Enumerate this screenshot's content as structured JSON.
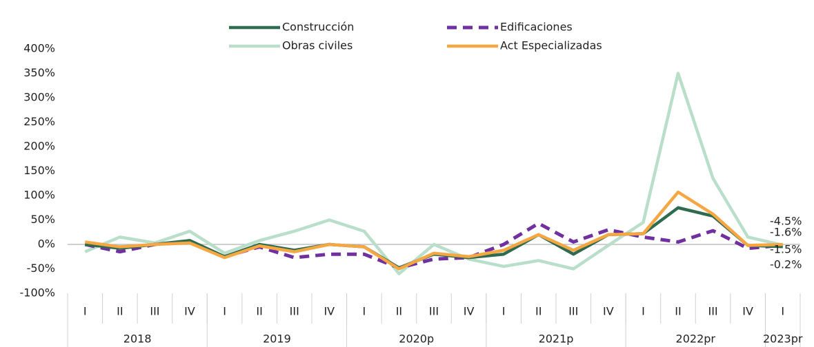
{
  "chart_data": {
    "type": "line",
    "categories": [
      "I",
      "II",
      "III",
      "IV",
      "I",
      "II",
      "III",
      "IV",
      "I",
      "II",
      "III",
      "IV",
      "I",
      "II",
      "III",
      "IV",
      "I",
      "II",
      "III",
      "IV",
      "I"
    ],
    "category_groups": [
      "2018",
      "2019",
      "2020p",
      "2021p",
      "2022pr",
      "2023pr"
    ],
    "ylim": [
      -100,
      400
    ],
    "yticks": [
      {
        "value": -100,
        "label": "-100%"
      },
      {
        "value": -50,
        "label": "-50%"
      },
      {
        "value": 0,
        "label": "0%"
      },
      {
        "value": 50,
        "label": "50%"
      },
      {
        "value": 100,
        "label": "100%"
      },
      {
        "value": 150,
        "label": "150%"
      },
      {
        "value": 200,
        "label": "200%"
      },
      {
        "value": 250,
        "label": "250%"
      },
      {
        "value": 300,
        "label": "300%"
      },
      {
        "value": 350,
        "label": "350%"
      },
      {
        "value": 400,
        "label": "400%"
      }
    ],
    "grid": false,
    "series": [
      {
        "name": "Construcción",
        "color": "#2e6b4f",
        "dashed": false,
        "values": [
          0,
          -8,
          0,
          8,
          -25,
          0,
          -12,
          0,
          -5,
          -48,
          -20,
          -27,
          -20,
          20,
          -20,
          20,
          22,
          75,
          58,
          -2,
          -4.5
        ],
        "value_labels": [
          null,
          null,
          null,
          null,
          null,
          null,
          null,
          null,
          null,
          null,
          null,
          null,
          null,
          null,
          null,
          null,
          null,
          null,
          null,
          null,
          "-4.5%"
        ]
      },
      {
        "name": "Edificaciones",
        "color": "#7030a0",
        "dashed": true,
        "values": [
          0,
          -15,
          0,
          5,
          -25,
          -5,
          -27,
          -20,
          -20,
          -48,
          -30,
          -27,
          0,
          43,
          5,
          30,
          15,
          5,
          28,
          -8,
          -1.6
        ],
        "value_labels": [
          null,
          null,
          null,
          null,
          null,
          null,
          null,
          null,
          null,
          null,
          null,
          null,
          null,
          null,
          null,
          null,
          null,
          null,
          null,
          null,
          "-1.6%"
        ]
      },
      {
        "name": "Obras civiles",
        "color": "#b9dfca",
        "dashed": false,
        "values": [
          -15,
          15,
          3,
          27,
          -18,
          8,
          27,
          50,
          27,
          -60,
          0,
          -30,
          -45,
          -33,
          -50,
          -2,
          45,
          350,
          135,
          15,
          -1.5
        ],
        "value_labels": [
          null,
          null,
          null,
          null,
          null,
          null,
          null,
          null,
          null,
          null,
          null,
          null,
          null,
          null,
          null,
          null,
          null,
          null,
          null,
          null,
          "-1.5%"
        ]
      },
      {
        "name": "Act Especializadas",
        "color": "#f4a742",
        "dashed": false,
        "values": [
          5,
          -5,
          0,
          3,
          -27,
          -3,
          -15,
          0,
          -5,
          -50,
          -18,
          -25,
          -12,
          20,
          -12,
          20,
          22,
          107,
          62,
          -2,
          -0.2
        ],
        "value_labels": [
          null,
          null,
          null,
          null,
          null,
          null,
          null,
          null,
          null,
          null,
          null,
          null,
          null,
          null,
          null,
          null,
          null,
          null,
          null,
          null,
          "-0.2%"
        ]
      }
    ]
  }
}
